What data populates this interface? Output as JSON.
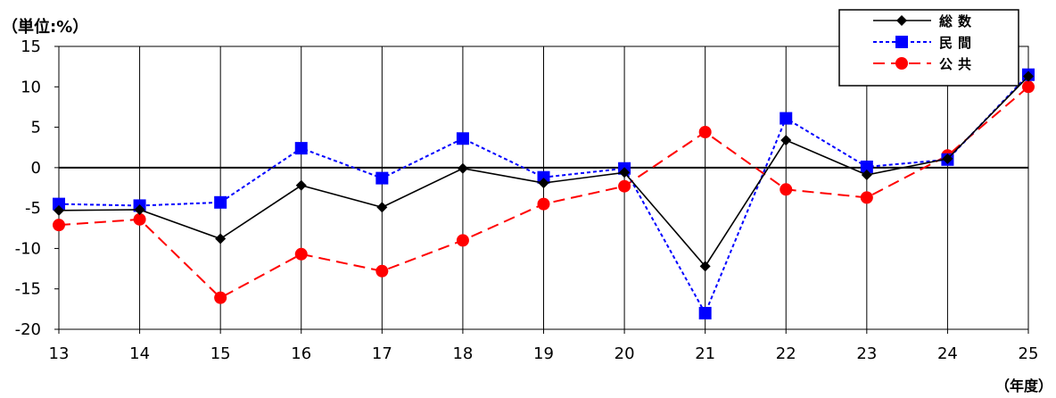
{
  "unit_label": "（単位:%）",
  "x_unit_label": "（年度）",
  "chart_data": {
    "type": "line",
    "categories": [
      "13",
      "14",
      "15",
      "16",
      "17",
      "18",
      "19",
      "20",
      "21",
      "22",
      "23",
      "24",
      "25"
    ],
    "ylim": [
      -20,
      15
    ],
    "yticks": [
      15,
      10,
      5,
      0,
      -5,
      -10,
      -15,
      -20
    ],
    "ytick_labels": [
      "15",
      "10",
      "5",
      "0",
      "-5",
      "-10",
      "-15",
      "-20"
    ],
    "grid": "vertical",
    "legend_position": "top-right",
    "series": [
      {
        "name": "総数",
        "color": "#000000",
        "line_style": "solid",
        "marker": "diamond",
        "values": [
          -5.3,
          -5.2,
          -8.8,
          -2.2,
          -4.9,
          -0.1,
          -1.9,
          -0.6,
          -12.2,
          3.4,
          -0.9,
          1.1,
          11.3
        ]
      },
      {
        "name": "民間",
        "color": "#0000FF",
        "line_style": "dotted",
        "marker": "square",
        "values": [
          -4.5,
          -4.7,
          -4.3,
          2.4,
          -1.3,
          3.6,
          -1.2,
          -0.1,
          -18.0,
          6.1,
          0.1,
          1.0,
          11.5
        ]
      },
      {
        "name": "公共",
        "color": "#FF0000",
        "line_style": "dashed",
        "marker": "circle",
        "values": [
          -7.1,
          -6.4,
          -16.1,
          -10.7,
          -12.8,
          -9.0,
          -4.5,
          -2.3,
          4.4,
          -2.7,
          -3.7,
          1.5,
          10.0
        ]
      }
    ]
  }
}
